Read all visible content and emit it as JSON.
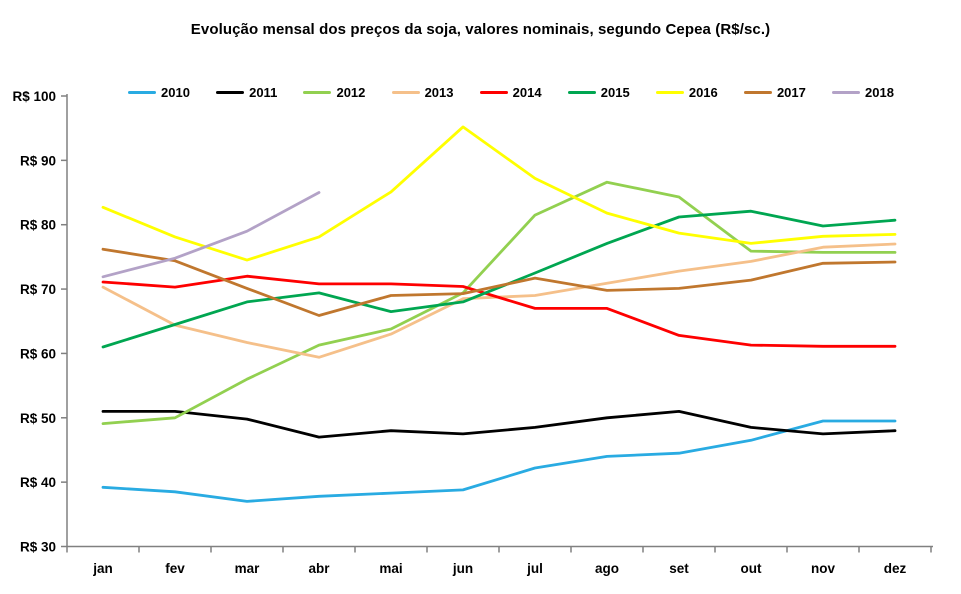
{
  "title": "Evolução mensal dos preços da soja, valores nominais, segundo Cepea (R$/sc.)",
  "axis_color": "#808080",
  "chart_data": {
    "type": "line",
    "title": "Evolução mensal dos preços da soja, valores nominais, segundo Cepea (R$/sc.)",
    "categories": [
      "jan",
      "fev",
      "mar",
      "abr",
      "mai",
      "jun",
      "jul",
      "ago",
      "set",
      "out",
      "nov",
      "dez"
    ],
    "y_axis": {
      "min": 30,
      "max": 100,
      "step": 10,
      "tick_prefix": "R$ "
    },
    "grid": false,
    "legend_position": "top",
    "series": [
      {
        "name": "2010",
        "color": "#29ABE2",
        "values": [
          39.2,
          38.5,
          37.0,
          37.8,
          38.3,
          38.8,
          42.2,
          44.0,
          44.5,
          46.5,
          49.5,
          49.5
        ]
      },
      {
        "name": "2011",
        "color": "#000000",
        "values": [
          51.0,
          51.0,
          49.8,
          47.0,
          48.0,
          47.5,
          48.5,
          50.0,
          51.0,
          48.5,
          47.5,
          48.0
        ]
      },
      {
        "name": "2012",
        "color": "#92D050",
        "values": [
          49.1,
          50.0,
          56.0,
          61.3,
          63.8,
          69.4,
          81.5,
          86.6,
          84.3,
          75.9,
          75.7,
          75.7
        ]
      },
      {
        "name": "2013",
        "color": "#F5C08A",
        "values": [
          70.3,
          64.4,
          61.7,
          59.4,
          63.0,
          68.5,
          69.0,
          70.9,
          72.8,
          74.3,
          76.5,
          77.0
        ]
      },
      {
        "name": "2014",
        "color": "#FE0000",
        "values": [
          71.1,
          70.3,
          72.0,
          70.8,
          70.8,
          70.4,
          67.0,
          67.0,
          62.8,
          61.3,
          61.1,
          61.1
        ]
      },
      {
        "name": "2015",
        "color": "#00A651",
        "values": [
          61.0,
          64.5,
          68.0,
          69.4,
          66.5,
          68.0,
          72.5,
          77.1,
          81.2,
          82.1,
          79.8,
          80.7
        ]
      },
      {
        "name": "2016",
        "color": "#FFFF00",
        "values": [
          82.7,
          78.1,
          74.5,
          78.1,
          85.1,
          95.2,
          87.2,
          81.8,
          78.7,
          77.1,
          78.2,
          78.5
        ]
      },
      {
        "name": "2017",
        "color": "#C0772E",
        "values": [
          76.2,
          74.4,
          70.1,
          65.9,
          69.0,
          69.3,
          71.7,
          69.8,
          70.1,
          71.4,
          74.0,
          74.2
        ]
      },
      {
        "name": "2018",
        "color": "#B3A2C7",
        "values": [
          71.9,
          74.8,
          79.0,
          85.0,
          null,
          null,
          null,
          null,
          null,
          null,
          null,
          null
        ]
      }
    ]
  }
}
